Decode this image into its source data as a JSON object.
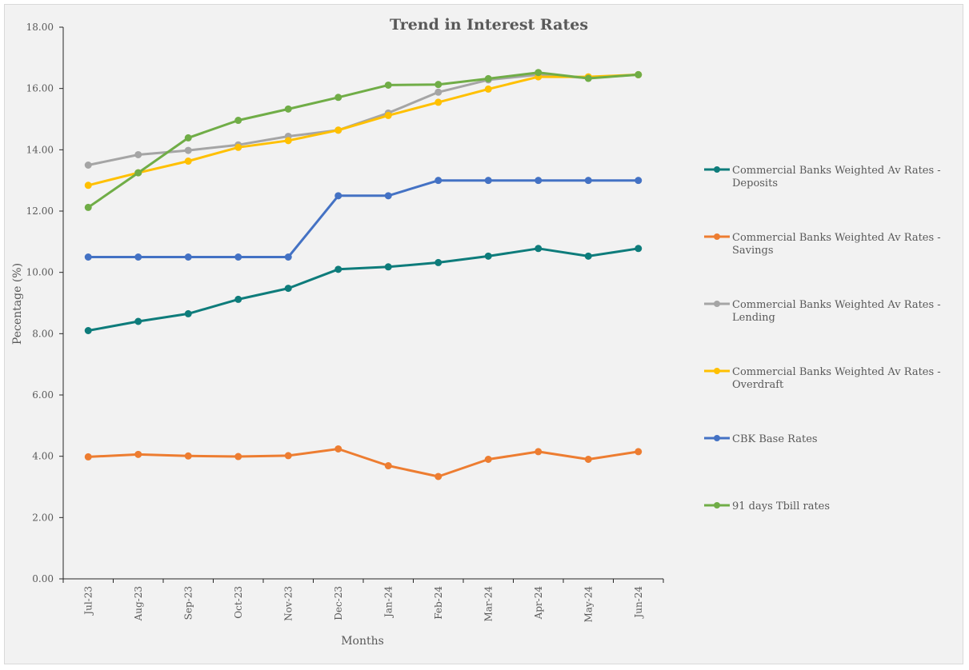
{
  "chart_data": {
    "type": "line",
    "title": "Trend in Interest Rates",
    "xlabel": "Months",
    "ylabel": "Pecentage (%)",
    "ylim": [
      0,
      18
    ],
    "yticks": [
      "0.00",
      "2.00",
      "4.00",
      "6.00",
      "8.00",
      "10.00",
      "12.00",
      "14.00",
      "16.00",
      "18.00"
    ],
    "grid": false,
    "legend_position": "right",
    "categories": [
      "Jul-23",
      "Aug-23",
      "Sep-23",
      "Oct-23",
      "Nov-23",
      "Dec-23",
      "Jan-24",
      "Feb-24",
      "Mar-24",
      "Apr-24",
      "May-24",
      "Jun-24"
    ],
    "series": [
      {
        "name": "Commercial Banks Weighted Av Rates - Deposits",
        "legend_lines": [
          "Commercial Banks Weighted Av Rates -",
          "Deposits"
        ],
        "color": "#0e7c7b",
        "values": [
          8.1,
          8.4,
          8.65,
          9.12,
          9.48,
          10.1,
          10.18,
          10.32,
          10.53,
          10.78,
          10.53,
          10.78
        ]
      },
      {
        "name": "Commercial Banks Weighted Av Rates - Savings",
        "legend_lines": [
          "Commercial Banks Weighted Av Rates -",
          "Savings"
        ],
        "color": "#ed7d31",
        "values": [
          3.98,
          4.06,
          4.01,
          3.99,
          4.02,
          4.24,
          3.69,
          3.34,
          3.9,
          4.15,
          3.9,
          4.15
        ]
      },
      {
        "name": "Commercial Banks Weighted Av Rates - Lending",
        "legend_lines": [
          "Commercial Banks Weighted Av Rates -",
          "Lending"
        ],
        "color": "#a5a5a5",
        "values": [
          13.5,
          13.84,
          13.98,
          14.16,
          14.44,
          14.64,
          15.2,
          15.88,
          16.28,
          16.45,
          16.34,
          16.45
        ]
      },
      {
        "name": "Commercial Banks Weighted Av Rates - Overdraft",
        "legend_lines": [
          "Commercial Banks Weighted Av Rates -",
          "Overdraft"
        ],
        "color": "#ffc000",
        "values": [
          12.84,
          13.25,
          13.63,
          14.08,
          14.3,
          14.64,
          15.12,
          15.55,
          15.98,
          16.38,
          16.38,
          16.45
        ]
      },
      {
        "name": "CBK Base Rates",
        "legend_lines": [
          "CBK Base Rates"
        ],
        "color": "#4472c4",
        "values": [
          10.5,
          10.5,
          10.5,
          10.5,
          10.5,
          12.5,
          12.5,
          13.0,
          13.0,
          13.0,
          13.0,
          13.0
        ]
      },
      {
        "name": "91 days Tbill rates",
        "legend_lines": [
          "91 days Tbill rates"
        ],
        "color": "#70ad47",
        "values": [
          12.12,
          13.25,
          14.39,
          14.96,
          15.33,
          15.71,
          16.11,
          16.13,
          16.32,
          16.52,
          16.33,
          16.45
        ]
      }
    ]
  }
}
